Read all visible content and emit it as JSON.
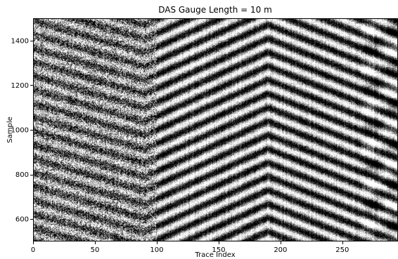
{
  "chart_data": {
    "type": "heatmap",
    "title": "DAS Gauge Length = 10 m",
    "xlabel": "Trace Index",
    "ylabel": "Sample",
    "xlim": [
      0,
      295
    ],
    "ylim": [
      500,
      1500
    ],
    "x_ticks": [
      0,
      50,
      100,
      150,
      200,
      250
    ],
    "y_ticks": [
      600,
      800,
      1000,
      1200,
      1400
    ],
    "colormap": "gray",
    "grid": false,
    "legend": "none",
    "wavefield": {
      "description": "seismic wavefield image with dipping black/white event stripes",
      "apex_trace": 190,
      "reflection_period_samples": 62,
      "moveout_samples_per_trace_left": 2.5,
      "moveout_samples_per_trace_right": 2.2,
      "kink_trace": 90
    }
  }
}
